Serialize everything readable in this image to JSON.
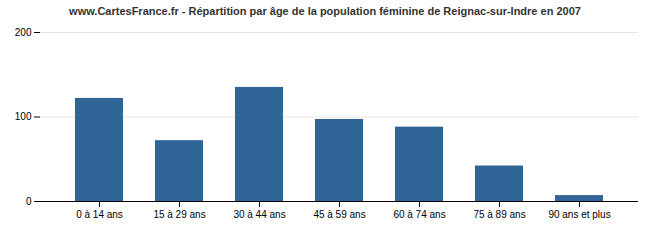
{
  "chart_data": {
    "type": "bar",
    "title": "www.CartesFrance.fr - Répartition par âge de la population féminine de Reignac-sur-Indre en 2007",
    "categories": [
      "0 à 14 ans",
      "15 à 29 ans",
      "30 à 44 ans",
      "45 à 59 ans",
      "60 à 74 ans",
      "75 à 89 ans",
      "90 ans et plus"
    ],
    "values": [
      122,
      72,
      135,
      97,
      88,
      42,
      7
    ],
    "color": "#2e6496",
    "ylim": [
      0,
      200
    ],
    "yticks": [
      0,
      100,
      200
    ],
    "grid": true
  }
}
